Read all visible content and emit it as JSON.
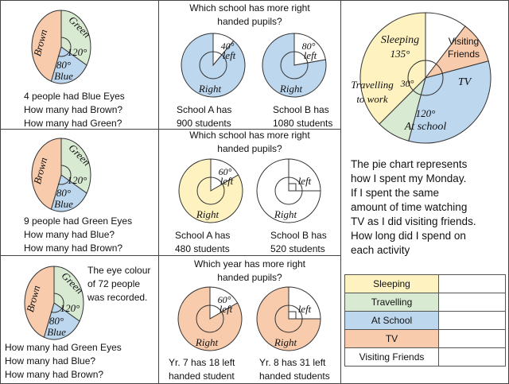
{
  "colors": {
    "brown": "#f8cbad",
    "green": "#d9ead3",
    "blue": "#bdd7ee",
    "yellow": "#fdf2c0",
    "white": "#ffffff",
    "stroke": "#333333"
  },
  "row1_left": {
    "labels": {
      "brown": "Brown",
      "green": "Green",
      "green_angle": "120°",
      "blue_angle": "80°",
      "blue": "Blue"
    },
    "q1": "4 people had Blue Eyes",
    "q2": "How many had Brown?",
    "q3": "How many had Green?"
  },
  "row1_mid": {
    "title_l1": "Which school has more right",
    "title_l2": "handed pupils?",
    "a_angle": "40°",
    "a_left": "left",
    "a_right": "Right",
    "b_angle": "80°",
    "b_left": "left",
    "b_right": "Right",
    "a_cap1": "School A has",
    "a_cap2": "900 students",
    "b_cap1": "School B has",
    "b_cap2": "1080 students"
  },
  "row2_left": {
    "labels": {
      "brown": "Brown",
      "green": "Green",
      "green_angle": "120°",
      "blue_angle": "80°",
      "blue": "Blue"
    },
    "q1": "9 people had Green Eyes",
    "q2": "How many had Blue?",
    "q3": "How many had Brown?"
  },
  "row2_mid": {
    "title_l1": "Which school has more right",
    "title_l2": "handed pupils?",
    "a_angle": "60°",
    "a_left": "left",
    "a_right": "Right",
    "b_left": "left",
    "b_right": "Right",
    "a_cap1": "School A has",
    "a_cap2": "480 students",
    "b_cap1": "School B has",
    "b_cap2": "520 students"
  },
  "row3_left": {
    "labels": {
      "brown": "Brown",
      "green": "Green",
      "green_angle": "120°",
      "blue_angle": "80°",
      "blue": "Blue"
    },
    "note1": "The eye colour",
    "note2": "of 72 people",
    "note3": "was recorded.",
    "q1": "How many had Green Eyes",
    "q2": "How many had Blue?",
    "q3": "How many had Brown?"
  },
  "row3_mid": {
    "title_l1": "Which year has more right",
    "title_l2": "handed pupils?",
    "a_angle": "60°",
    "a_left": "left",
    "a_right": "Right",
    "b_left": "left",
    "b_right": "Right",
    "a_cap1": "Yr. 7 has 18 left",
    "a_cap2": "handed student",
    "b_cap1": "Yr. 8 has 31 left",
    "b_cap2": "handed students"
  },
  "right": {
    "pie": {
      "sleeping": "Sleeping",
      "sleeping_angle": "135°",
      "visiting1": "Visiting",
      "visiting2": "Friends",
      "tv": "TV",
      "travel1": "Travelling",
      "travel2": "to work",
      "travel_angle": "30°",
      "school_angle": "120°",
      "school": "At school"
    },
    "p1": "The pie chart represents",
    "p2": "how I spent my Monday.",
    "p3": "If I spent the same",
    "p4": "amount of time watching",
    "p5": "TV as I did visiting friends.",
    "p6": "How long did I spend on",
    "p7": "each activity",
    "table": [
      "Sleeping",
      "Travelling",
      "At School",
      "TV",
      "Visiting Friends"
    ]
  }
}
